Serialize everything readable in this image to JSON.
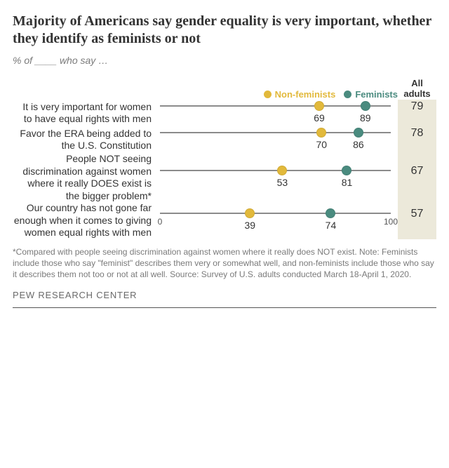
{
  "title": "Majority of Americans say gender equality is very important, whether they identify as feminists or not",
  "subtitle": "% of ____ who say …",
  "legend": {
    "nonfeminists": "Non-feminists",
    "feminists": "Feminists",
    "all_adults": "All adults"
  },
  "chart": {
    "type": "dot-strip",
    "xlim": [
      0,
      100
    ],
    "axis_min_label": "0",
    "axis_max_label": "100",
    "track_color": "#8b8b8b",
    "background_color": "#ffffff",
    "all_adults_bg": "#ece9da",
    "series": [
      {
        "key": "nonfeminists",
        "color": "#e2b93b",
        "marker": "circle",
        "marker_size": 14
      },
      {
        "key": "feminists",
        "color": "#4a8b7f",
        "marker": "circle",
        "marker_size": 14
      }
    ],
    "rows": [
      {
        "label": "It is very important for women to have equal rights with men",
        "nonfeminists": 69,
        "feminists": 89,
        "all_adults": 79
      },
      {
        "label": "Favor the ERA being added to the U.S. Constitution",
        "nonfeminists": 70,
        "feminists": 86,
        "all_adults": 78
      },
      {
        "label": "People NOT seeing discrimination against women where it really DOES exist is the bigger problem*",
        "nonfeminists": 53,
        "feminists": 81,
        "all_adults": 67
      },
      {
        "label": "Our country has not gone far enough when it comes to giving women equal rights with men",
        "nonfeminists": 39,
        "feminists": 74,
        "all_adults": 57
      }
    ]
  },
  "footnote": "*Compared with people seeing discrimination against women where it really does NOT exist.\nNote: Feminists include those who say \"feminist\" describes them very or somewhat well, and non-feminists include those who say it describes them not too or not at all well.\nSource: Survey of U.S. adults conducted March 18-April 1, 2020.",
  "source_label": "PEW RESEARCH CENTER",
  "typography": {
    "title_fontsize": 20,
    "title_weight": "bold",
    "label_fontsize": 14,
    "value_fontsize": 14,
    "footnote_fontsize": 12,
    "font_family_title": "Georgia",
    "font_family_body": "Arial"
  }
}
